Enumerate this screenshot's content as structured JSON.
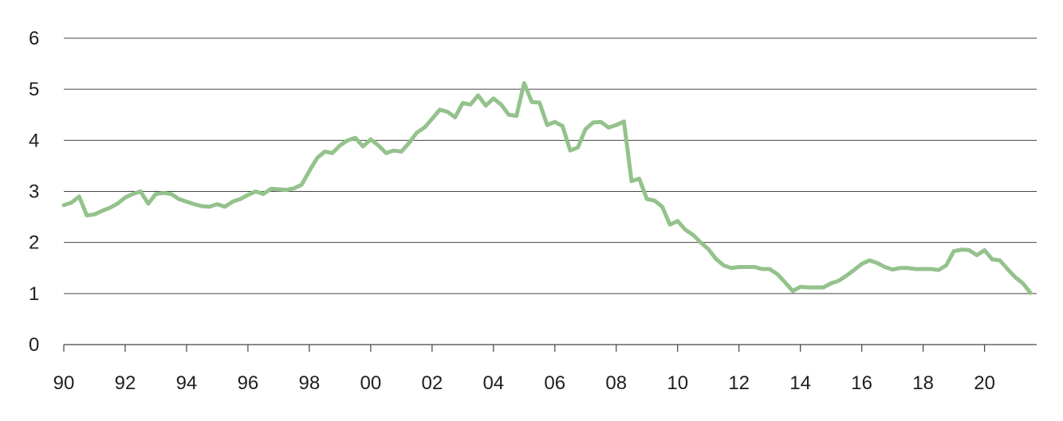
{
  "chart_data": {
    "type": "line",
    "title": "",
    "xlabel": "",
    "ylabel": "",
    "xlim": [
      1990.0,
      2021.7
    ],
    "ylim": [
      0,
      6
    ],
    "grid": true,
    "legend": "none",
    "x_ticks": [
      {
        "value": 1990,
        "label": "90"
      },
      {
        "value": 1992,
        "label": "92"
      },
      {
        "value": 1994,
        "label": "94"
      },
      {
        "value": 1996,
        "label": "96"
      },
      {
        "value": 1998,
        "label": "98"
      },
      {
        "value": 2000,
        "label": "00"
      },
      {
        "value": 2002,
        "label": "02"
      },
      {
        "value": 2004,
        "label": "04"
      },
      {
        "value": 2006,
        "label": "06"
      },
      {
        "value": 2008,
        "label": "08"
      },
      {
        "value": 2010,
        "label": "10"
      },
      {
        "value": 2012,
        "label": "12"
      },
      {
        "value": 2014,
        "label": "14"
      },
      {
        "value": 2016,
        "label": "16"
      },
      {
        "value": 2018,
        "label": "18"
      },
      {
        "value": 2020,
        "label": "20"
      }
    ],
    "y_ticks": [
      {
        "value": 0,
        "label": "0"
      },
      {
        "value": 1,
        "label": "1"
      },
      {
        "value": 2,
        "label": "2"
      },
      {
        "value": 3,
        "label": "3"
      },
      {
        "value": 4,
        "label": "4"
      },
      {
        "value": 5,
        "label": "5"
      },
      {
        "value": 6,
        "label": "6"
      }
    ],
    "colors": {
      "series": "#94c28c",
      "grid": "#444444",
      "text": "#1f1f1f"
    },
    "series": [
      {
        "points": [
          [
            1990.0,
            2.73
          ],
          [
            1990.25,
            2.78
          ],
          [
            1990.5,
            2.9
          ],
          [
            1990.75,
            2.53
          ],
          [
            1991.0,
            2.55
          ],
          [
            1991.25,
            2.62
          ],
          [
            1991.5,
            2.68
          ],
          [
            1991.75,
            2.76
          ],
          [
            1992.0,
            2.88
          ],
          [
            1992.25,
            2.95
          ],
          [
            1992.5,
            3.0
          ],
          [
            1992.75,
            2.76
          ],
          [
            1993.0,
            2.95
          ],
          [
            1993.25,
            2.97
          ],
          [
            1993.5,
            2.95
          ],
          [
            1993.75,
            2.85
          ],
          [
            1994.0,
            2.8
          ],
          [
            1994.25,
            2.75
          ],
          [
            1994.5,
            2.71
          ],
          [
            1994.75,
            2.7
          ],
          [
            1995.0,
            2.75
          ],
          [
            1995.25,
            2.7
          ],
          [
            1995.5,
            2.8
          ],
          [
            1995.75,
            2.85
          ],
          [
            1996.0,
            2.93
          ],
          [
            1996.25,
            3.0
          ],
          [
            1996.5,
            2.95
          ],
          [
            1996.75,
            3.05
          ],
          [
            1997.0,
            3.04
          ],
          [
            1997.25,
            3.03
          ],
          [
            1997.5,
            3.06
          ],
          [
            1997.75,
            3.13
          ],
          [
            1998.0,
            3.4
          ],
          [
            1998.25,
            3.65
          ],
          [
            1998.5,
            3.78
          ],
          [
            1998.75,
            3.75
          ],
          [
            1999.0,
            3.9
          ],
          [
            1999.25,
            4.0
          ],
          [
            1999.5,
            4.05
          ],
          [
            1999.75,
            3.88
          ],
          [
            2000.0,
            4.02
          ],
          [
            2000.25,
            3.9
          ],
          [
            2000.5,
            3.75
          ],
          [
            2000.75,
            3.8
          ],
          [
            2001.0,
            3.78
          ],
          [
            2001.25,
            3.95
          ],
          [
            2001.5,
            4.15
          ],
          [
            2001.75,
            4.25
          ],
          [
            2002.0,
            4.42
          ],
          [
            2002.25,
            4.6
          ],
          [
            2002.5,
            4.56
          ],
          [
            2002.75,
            4.45
          ],
          [
            2003.0,
            4.73
          ],
          [
            2003.25,
            4.7
          ],
          [
            2003.5,
            4.88
          ],
          [
            2003.75,
            4.68
          ],
          [
            2004.0,
            4.82
          ],
          [
            2004.25,
            4.7
          ],
          [
            2004.5,
            4.5
          ],
          [
            2004.75,
            4.48
          ],
          [
            2005.0,
            5.12
          ],
          [
            2005.25,
            4.75
          ],
          [
            2005.5,
            4.74
          ],
          [
            2005.75,
            4.3
          ],
          [
            2006.0,
            4.36
          ],
          [
            2006.25,
            4.28
          ],
          [
            2006.5,
            3.8
          ],
          [
            2006.75,
            3.86
          ],
          [
            2007.0,
            4.22
          ],
          [
            2007.25,
            4.35
          ],
          [
            2007.5,
            4.36
          ],
          [
            2007.75,
            4.25
          ],
          [
            2008.0,
            4.3
          ],
          [
            2008.25,
            4.37
          ],
          [
            2008.5,
            3.2
          ],
          [
            2008.75,
            3.25
          ],
          [
            2009.0,
            2.85
          ],
          [
            2009.25,
            2.82
          ],
          [
            2009.5,
            2.7
          ],
          [
            2009.75,
            2.35
          ],
          [
            2010.0,
            2.42
          ],
          [
            2010.25,
            2.25
          ],
          [
            2010.5,
            2.15
          ],
          [
            2010.75,
            2.0
          ],
          [
            2011.0,
            1.87
          ],
          [
            2011.25,
            1.68
          ],
          [
            2011.5,
            1.55
          ],
          [
            2011.75,
            1.5
          ],
          [
            2012.0,
            1.52
          ],
          [
            2012.25,
            1.52
          ],
          [
            2012.5,
            1.52
          ],
          [
            2012.75,
            1.48
          ],
          [
            2013.0,
            1.48
          ],
          [
            2013.25,
            1.38
          ],
          [
            2013.5,
            1.22
          ],
          [
            2013.75,
            1.05
          ],
          [
            2014.0,
            1.13
          ],
          [
            2014.25,
            1.12
          ],
          [
            2014.5,
            1.12
          ],
          [
            2014.75,
            1.12
          ],
          [
            2015.0,
            1.2
          ],
          [
            2015.25,
            1.25
          ],
          [
            2015.5,
            1.35
          ],
          [
            2015.75,
            1.46
          ],
          [
            2016.0,
            1.58
          ],
          [
            2016.25,
            1.65
          ],
          [
            2016.5,
            1.6
          ],
          [
            2016.75,
            1.52
          ],
          [
            2017.0,
            1.47
          ],
          [
            2017.25,
            1.5
          ],
          [
            2017.5,
            1.5
          ],
          [
            2017.75,
            1.48
          ],
          [
            2018.0,
            1.48
          ],
          [
            2018.25,
            1.48
          ],
          [
            2018.5,
            1.46
          ],
          [
            2018.75,
            1.55
          ],
          [
            2019.0,
            1.83
          ],
          [
            2019.25,
            1.86
          ],
          [
            2019.5,
            1.85
          ],
          [
            2019.75,
            1.75
          ],
          [
            2020.0,
            1.85
          ],
          [
            2020.25,
            1.67
          ],
          [
            2020.5,
            1.65
          ],
          [
            2020.75,
            1.48
          ],
          [
            2021.0,
            1.32
          ],
          [
            2021.25,
            1.2
          ],
          [
            2021.5,
            1.01
          ]
        ]
      }
    ]
  }
}
